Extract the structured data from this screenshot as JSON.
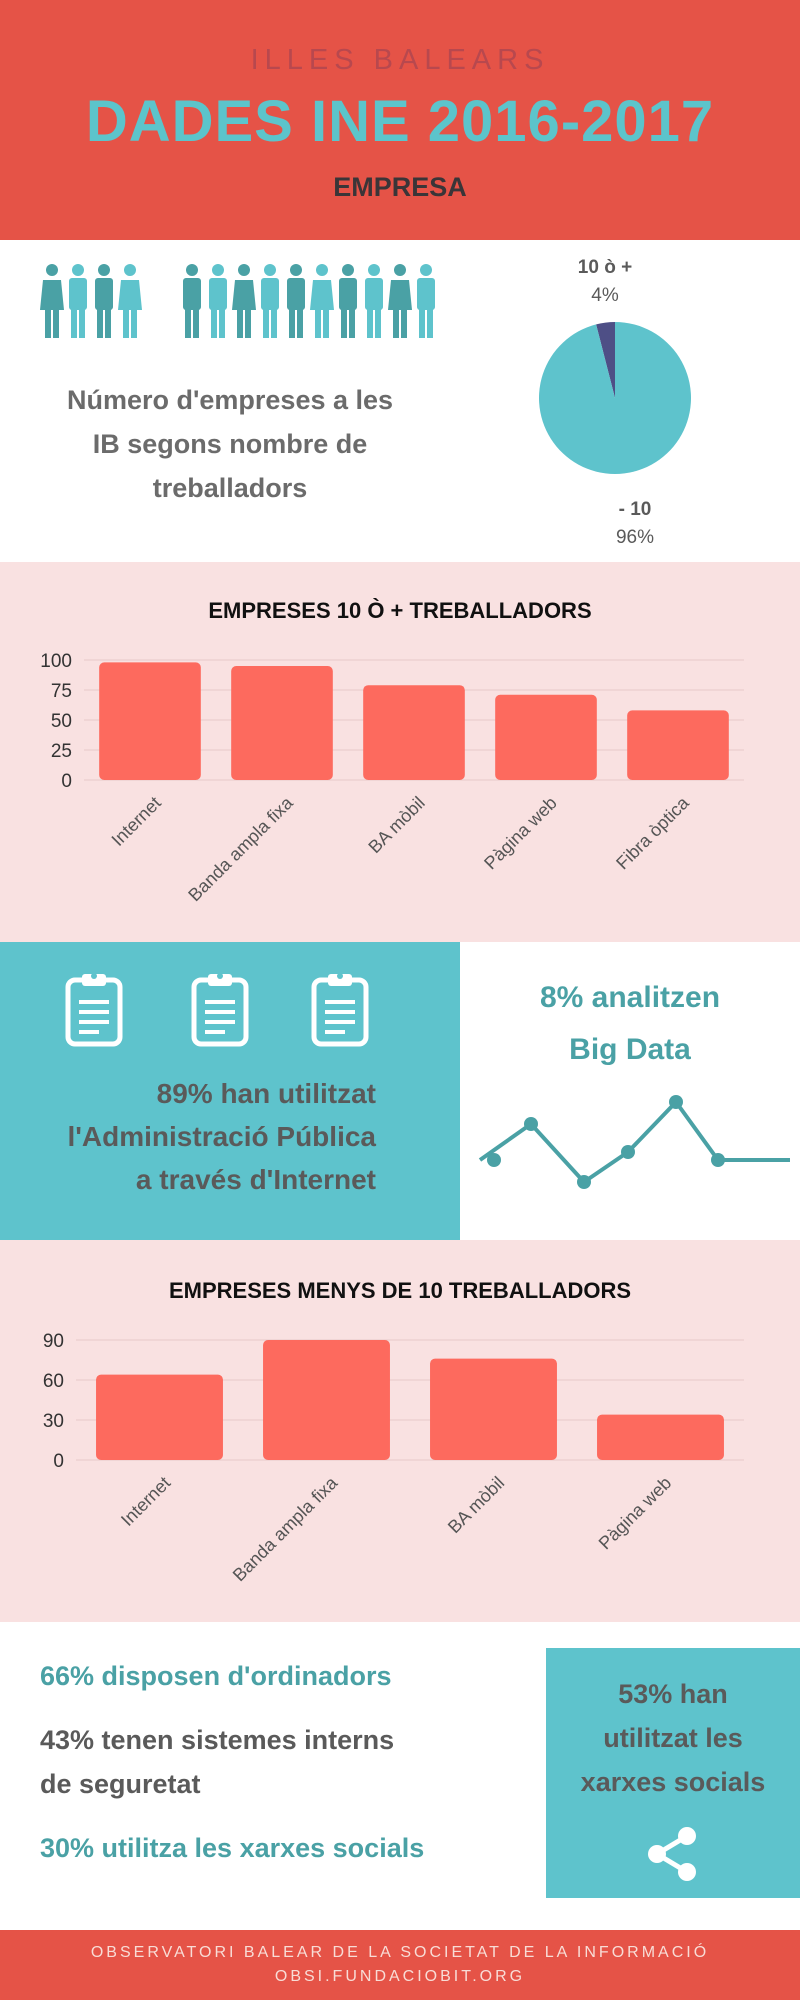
{
  "header": {
    "region": "ILLES BALEARS",
    "title": "DADES INE 2016-2017",
    "subtitle": "EMPRESA"
  },
  "size_section": {
    "icon": "people-icon",
    "description_lines": [
      "Número d'empreses a les",
      "IB segons nombre de",
      "treballadors"
    ],
    "pie": {
      "slices": [
        {
          "label": "10 ò +",
          "percent_label": "4%",
          "value": 4,
          "color": "#4e4f86"
        },
        {
          "label": "- 10",
          "percent_label": "96%",
          "value": 96,
          "color": "#5ec3cc"
        }
      ]
    }
  },
  "colors": {
    "header_bg": "#e55347",
    "teal": "#5ec3cc",
    "panel_bg": "#f9e1e1",
    "bar": "#fd6a5e",
    "dark_teal_text": "#4aa1a5",
    "grey_text": "#5a5a5a"
  },
  "chart_data": [
    {
      "type": "bar",
      "title": "EMPRESES 10 Ò + TREBALLADORS",
      "categories": [
        "Internet",
        "Banda ampla fixa",
        "BA mòbil",
        "Pàgina web",
        "Fibra òptica"
      ],
      "values": [
        98,
        95,
        79,
        71,
        58
      ],
      "yticks": [
        0,
        25,
        50,
        75,
        100
      ],
      "ylim": [
        0,
        100
      ],
      "grid": true
    },
    {
      "type": "bar",
      "title": "EMPRESES MENYS DE 10 TREBALLADORS",
      "categories": [
        "Internet",
        "Banda ampla fixa",
        "BA mòbil",
        "Pàgina web"
      ],
      "values": [
        64,
        90,
        76,
        34
      ],
      "yticks": [
        0,
        30,
        60,
        90
      ],
      "ylim": [
        0,
        90
      ],
      "grid": true
    }
  ],
  "admin_block": {
    "icon": "clipboard-icon",
    "lines": [
      "89% han utilitzat",
      "l'Administració Pública",
      "a través d'Internet"
    ]
  },
  "big_data_block": {
    "lines": [
      "8% analitzen",
      "Big Data"
    ],
    "icon": "line-graph-icon"
  },
  "stats": [
    {
      "text": "66% disposen d'ordinadors",
      "color": "#4aa1a5"
    },
    {
      "lines": [
        "43% tenen sistemes interns",
        "de seguretat"
      ],
      "color": "#5a5a5a"
    },
    {
      "text": "30% utilitza les xarxes socials",
      "color": "#4aa1a5"
    }
  ],
  "social_box": {
    "lines": [
      "53% han",
      "utilitzat les",
      "xarxes socials"
    ],
    "icon": "share-icon"
  },
  "footer": {
    "line1": "OBSERVATORI BALEAR DE LA SOCIETAT DE LA INFORMACIÓ",
    "line2": "OBSI.FUNDACIOBIT.ORG"
  }
}
